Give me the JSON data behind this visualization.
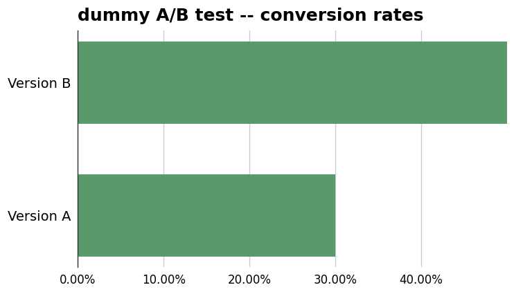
{
  "title": "dummy A/B test -- conversion rates",
  "categories": [
    "Version B",
    "Version A"
  ],
  "values": [
    0.5,
    0.3
  ],
  "bar_color": "#5a9a6a",
  "background_color": "#ffffff",
  "xlim": [
    0,
    0.52
  ],
  "xticks": [
    0.0,
    0.1,
    0.2,
    0.3,
    0.4
  ],
  "xtick_labels": [
    "0.00%",
    "10.00%",
    "20.00%",
    "30.00%",
    "40.00%"
  ],
  "title_fontsize": 18,
  "tick_fontsize": 12,
  "ytick_fontsize": 14,
  "grid_color": "#cccccc",
  "bar_height": 0.62
}
